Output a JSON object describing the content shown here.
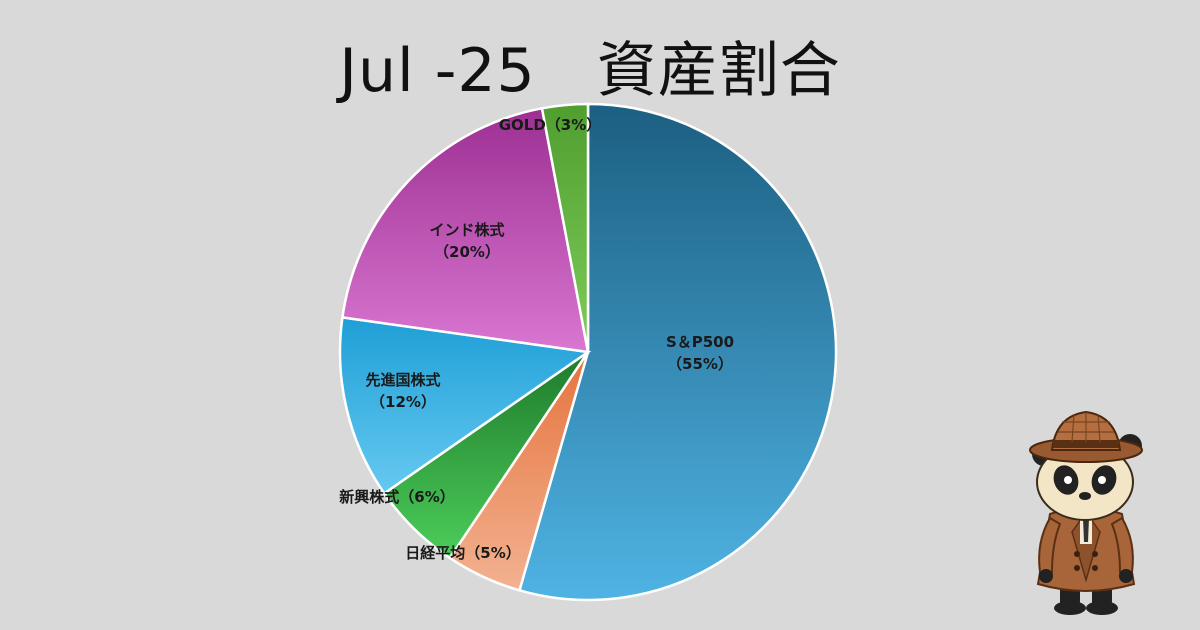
{
  "title": "Jul -25　資産割合",
  "chart_data": {
    "type": "pie",
    "title": "Jul -25　資産割合",
    "slices": [
      {
        "name": "S＆P500",
        "value": 55,
        "label_line1": "S＆P500",
        "label_line2": "（55%）",
        "color_top": "#1c5f82",
        "color_bottom": "#4fb3e3"
      },
      {
        "name": "日経平均",
        "value": 5,
        "label_line1": "日経平均（5%）",
        "label_line2": "",
        "color_top": "#e6733d",
        "color_bottom": "#f2b291"
      },
      {
        "name": "新興株式",
        "value": 6,
        "label_line1": "新興株式（6%）",
        "label_line2": "",
        "color_top": "#1f7a2c",
        "color_bottom": "#4ccd5a"
      },
      {
        "name": "先進国株式",
        "value": 12,
        "label_line1": "先進国株式",
        "label_line2": "（12%）",
        "color_top": "#1e9fd6",
        "color_bottom": "#66c9f1"
      },
      {
        "name": "インド株式",
        "value": 20,
        "label_line1": "インド株式",
        "label_line2": "（20%）",
        "color_top": "#9d2f93",
        "color_bottom": "#d977d1"
      },
      {
        "name": "GOLD",
        "value": 3,
        "label_line1": "GOLD（3%）",
        "label_line2": "",
        "color_top": "#4f9e2f",
        "color_bottom": "#7fcc5b"
      }
    ]
  },
  "mascot": {
    "icon": "detective-panda-icon"
  }
}
